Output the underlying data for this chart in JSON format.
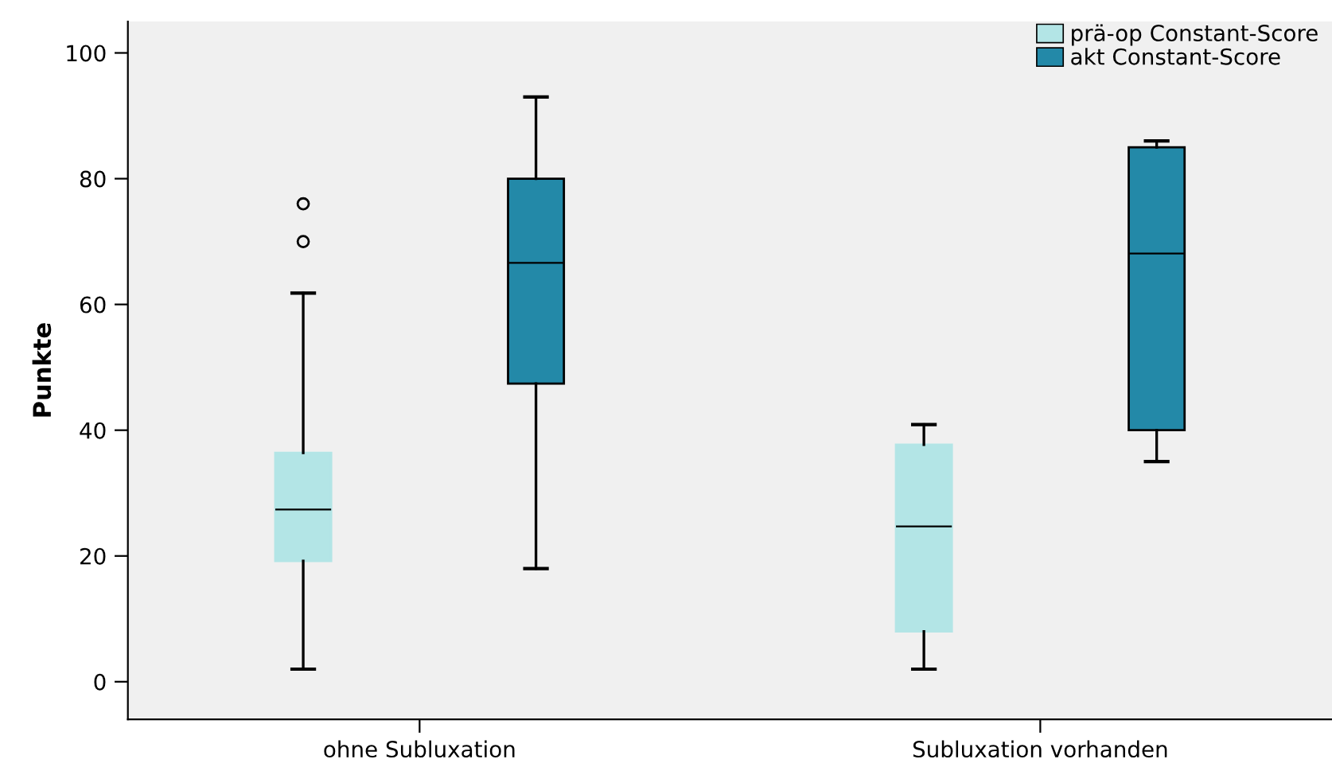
{
  "chart_data": {
    "type": "box",
    "ylabel": "Punkte",
    "categories": [
      "ohne Subluxation",
      "Subluxation vorhanden"
    ],
    "ylim": [
      -6,
      105
    ],
    "yticks": [
      0,
      20,
      40,
      60,
      80,
      100
    ],
    "grid": false,
    "legend": "top right",
    "series": [
      {
        "name": "prä-op Constant-Score",
        "color": "#b3e5e6",
        "boxes": [
          {
            "low": 2,
            "q1": 19.2,
            "median": 27.4,
            "q3": 36.4,
            "high": 61.8,
            "outliers": [
              70,
              76
            ]
          },
          {
            "low": 2,
            "q1": 8,
            "median": 24.7,
            "q3": 37.7,
            "high": 40.9
          }
        ]
      },
      {
        "name": "akt Constant-Score",
        "color": "#2389a8",
        "boxes": [
          {
            "low": 18,
            "q1": 47.4,
            "median": 66.6,
            "q3": 80,
            "high": 93
          },
          {
            "low": 35,
            "q1": 40,
            "median": 68.1,
            "q3": 85,
            "high": 86
          }
        ]
      }
    ]
  }
}
